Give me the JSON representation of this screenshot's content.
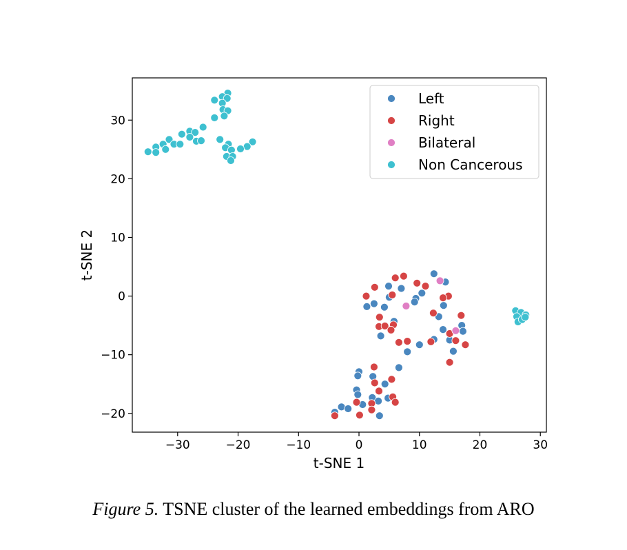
{
  "caption": {
    "label": "Figure 5.",
    "text": "TSNE cluster of the learned embeddings from ARO"
  },
  "chart_data": {
    "type": "scatter",
    "xlabel": "t-SNE 1",
    "ylabel": "t-SNE 2",
    "xlim": [
      -37.5,
      31
    ],
    "ylim": [
      -23.2,
      37.2
    ],
    "xticks": [
      -30,
      -20,
      -10,
      0,
      10,
      20,
      30
    ],
    "yticks": [
      -20,
      -10,
      0,
      10,
      20,
      30
    ],
    "grid": false,
    "legend_position": "top-right",
    "series": [
      {
        "name": "Left",
        "color": "#4a87bf",
        "points": [
          [
            12.4,
            3.8
          ],
          [
            14.3,
            2.4
          ],
          [
            7.0,
            1.3
          ],
          [
            10.4,
            0.5
          ],
          [
            4.9,
            1.7
          ],
          [
            5.0,
            -0.2
          ],
          [
            9.4,
            -0.4
          ],
          [
            9.2,
            -1.0
          ],
          [
            14.0,
            -1.6
          ],
          [
            1.3,
            -1.8
          ],
          [
            2.5,
            -1.3
          ],
          [
            4.2,
            -1.9
          ],
          [
            13.2,
            -3.5
          ],
          [
            5.8,
            -4.3
          ],
          [
            17.0,
            -5.0
          ],
          [
            13.9,
            -5.7
          ],
          [
            17.2,
            -6.0
          ],
          [
            3.6,
            -6.8
          ],
          [
            15.0,
            -7.5
          ],
          [
            12.4,
            -7.4
          ],
          [
            10.0,
            -8.3
          ],
          [
            8.0,
            -9.5
          ],
          [
            15.6,
            -9.4
          ],
          [
            6.6,
            -12.2
          ],
          [
            0.0,
            -12.9
          ],
          [
            -0.2,
            -13.6
          ],
          [
            2.3,
            -13.7
          ],
          [
            4.3,
            -15.0
          ],
          [
            -0.4,
            -16.0
          ],
          [
            -0.2,
            -16.8
          ],
          [
            2.2,
            -17.3
          ],
          [
            4.8,
            -17.4
          ],
          [
            0.6,
            -18.5
          ],
          [
            3.2,
            -17.9
          ],
          [
            -2.9,
            -18.9
          ],
          [
            -1.8,
            -19.2
          ],
          [
            -4.0,
            -19.8
          ],
          [
            3.4,
            -20.4
          ]
        ]
      },
      {
        "name": "Right",
        "color": "#d64545",
        "points": [
          [
            7.4,
            3.4
          ],
          [
            6.0,
            3.1
          ],
          [
            9.6,
            2.2
          ],
          [
            11.0,
            1.7
          ],
          [
            2.6,
            1.5
          ],
          [
            1.2,
            0.0
          ],
          [
            5.5,
            0.2
          ],
          [
            14.8,
            0.0
          ],
          [
            13.9,
            -0.3
          ],
          [
            3.4,
            -3.6
          ],
          [
            12.3,
            -2.9
          ],
          [
            16.9,
            -3.3
          ],
          [
            5.7,
            -4.9
          ],
          [
            3.3,
            -5.2
          ],
          [
            4.3,
            -5.1
          ],
          [
            5.3,
            -5.8
          ],
          [
            15.0,
            -6.4
          ],
          [
            8.0,
            -7.7
          ],
          [
            6.6,
            -7.9
          ],
          [
            11.9,
            -7.8
          ],
          [
            16.0,
            -7.6
          ],
          [
            17.6,
            -8.3
          ],
          [
            15.0,
            -11.3
          ],
          [
            2.5,
            -12.1
          ],
          [
            2.6,
            -14.8
          ],
          [
            5.4,
            -14.2
          ],
          [
            3.3,
            -16.2
          ],
          [
            5.6,
            -17.2
          ],
          [
            -0.4,
            -18.1
          ],
          [
            2.1,
            -18.3
          ],
          [
            6.0,
            -18.1
          ],
          [
            2.1,
            -19.4
          ],
          [
            0.1,
            -20.3
          ],
          [
            -4.0,
            -20.4
          ]
        ]
      },
      {
        "name": "Bilateral",
        "color": "#e07fc4",
        "points": [
          [
            13.4,
            2.6
          ],
          [
            7.8,
            -1.7
          ],
          [
            16.0,
            -5.9
          ]
        ]
      },
      {
        "name": "Non Cancerous",
        "color": "#3ec0d0",
        "points": [
          [
            -21.7,
            34.6
          ],
          [
            -22.6,
            34.0
          ],
          [
            -21.8,
            33.7
          ],
          [
            -23.9,
            33.4
          ],
          [
            -22.6,
            32.9
          ],
          [
            -22.5,
            31.8
          ],
          [
            -21.7,
            31.6
          ],
          [
            -22.3,
            30.7
          ],
          [
            -23.9,
            30.4
          ],
          [
            -25.8,
            28.8
          ],
          [
            -28.0,
            28.1
          ],
          [
            -27.1,
            27.9
          ],
          [
            -29.3,
            27.6
          ],
          [
            -28.0,
            27.1
          ],
          [
            -31.4,
            26.7
          ],
          [
            -23.0,
            26.7
          ],
          [
            -26.9,
            26.4
          ],
          [
            -26.1,
            26.5
          ],
          [
            -17.6,
            26.3
          ],
          [
            -30.6,
            25.9
          ],
          [
            -29.6,
            25.9
          ],
          [
            -21.6,
            25.9
          ],
          [
            -18.5,
            25.5
          ],
          [
            -33.6,
            25.4
          ],
          [
            -22.1,
            25.3
          ],
          [
            -32.4,
            25.9
          ],
          [
            -21.1,
            24.9
          ],
          [
            -19.6,
            25.1
          ],
          [
            -34.9,
            24.6
          ],
          [
            -33.6,
            24.5
          ],
          [
            -32.0,
            25.0
          ],
          [
            -21.9,
            23.8
          ],
          [
            -20.9,
            23.8
          ],
          [
            -21.2,
            23.1
          ],
          [
            25.9,
            -2.5
          ],
          [
            26.8,
            -2.8
          ],
          [
            27.6,
            -3.2
          ],
          [
            26.1,
            -3.5
          ],
          [
            26.3,
            -4.4
          ],
          [
            27.0,
            -4.0
          ],
          [
            27.5,
            -3.6
          ]
        ]
      }
    ]
  }
}
